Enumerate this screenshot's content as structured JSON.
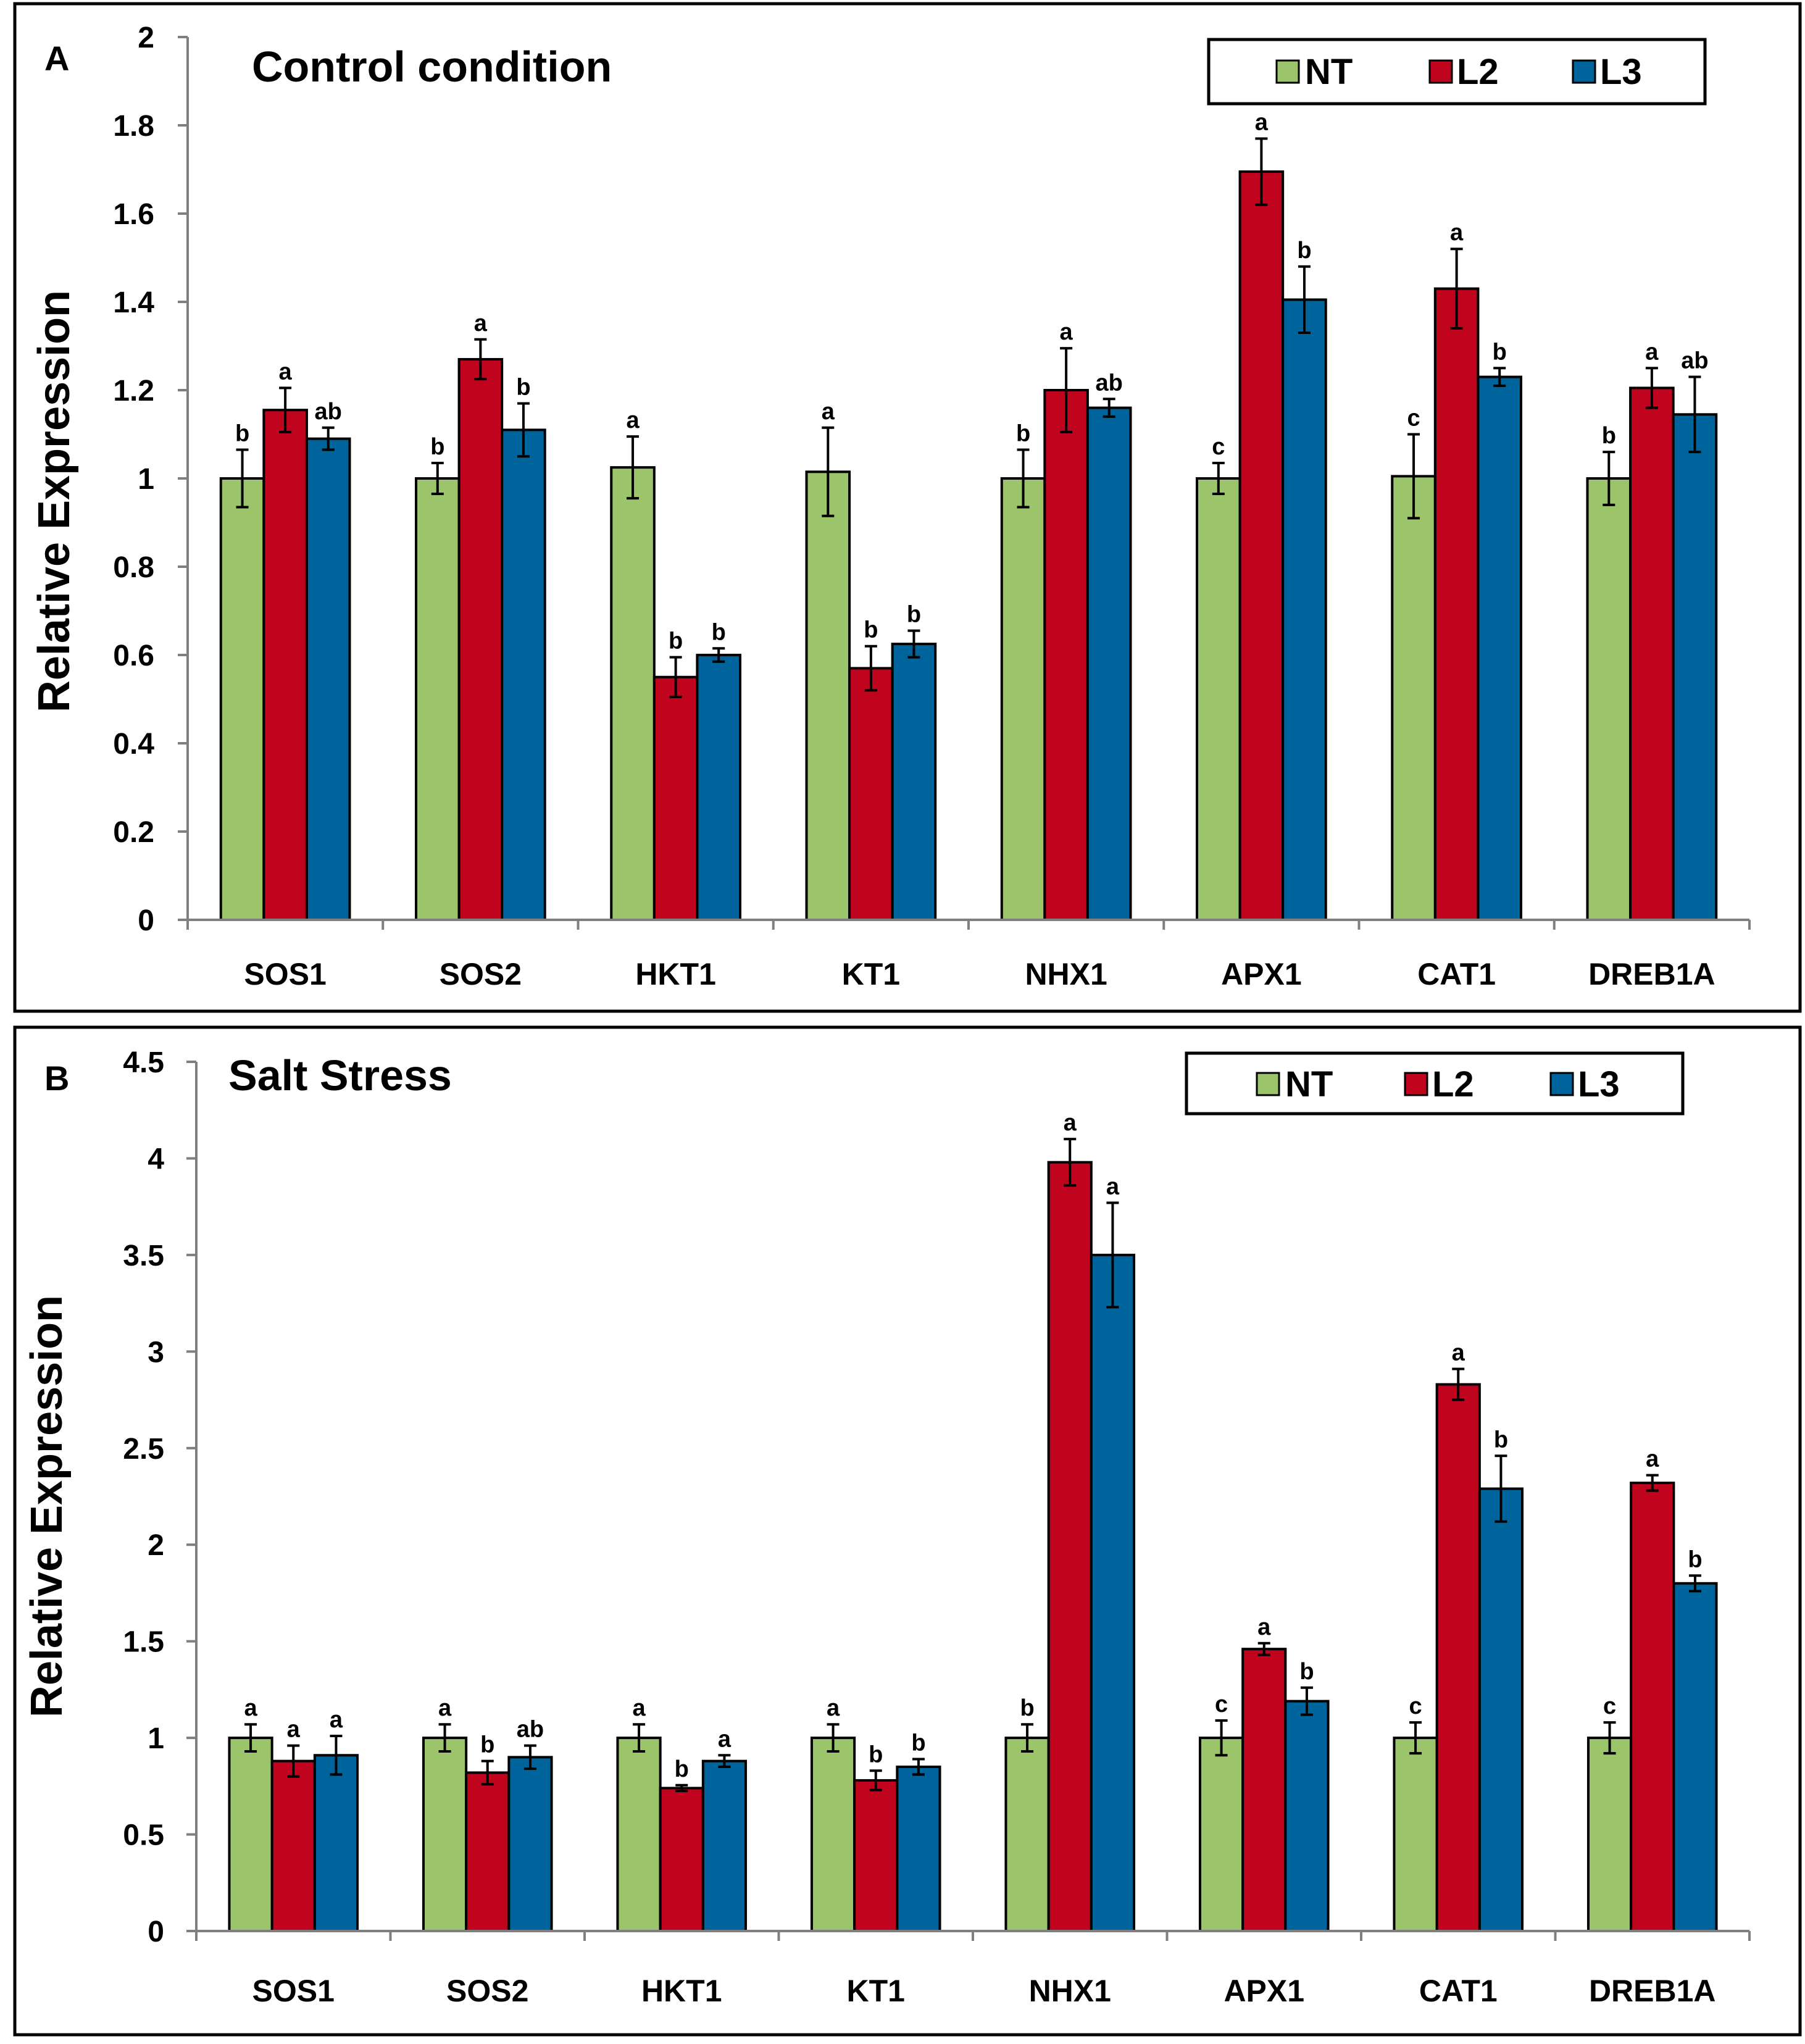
{
  "colors": {
    "NT": "#9bc46b",
    "L2": "#c0041e",
    "L3": "#00649c"
  },
  "chart_data": [
    {
      "type": "bar",
      "panel_label": "A",
      "title": "Control condition",
      "xlabel": "",
      "ylabel": "Relative Expression",
      "ylim": [
        0,
        2
      ],
      "yticks": [
        0,
        0.2,
        0.4,
        0.6,
        0.8,
        1,
        1.2,
        1.4,
        1.6,
        1.8,
        2
      ],
      "ytick_labels": [
        "0",
        "0.2",
        "0.4",
        "0.6",
        "0.8",
        "1",
        "1.2",
        "1.4",
        "1.6",
        "1.8",
        "2"
      ],
      "grid": false,
      "legend_position": "top-right",
      "categories": [
        "SOS1",
        "SOS2",
        "HKT1",
        "KT1",
        "NHX1",
        "APX1",
        "CAT1",
        "DREB1A"
      ],
      "series": [
        {
          "name": "NT",
          "values": [
            1.0,
            1.0,
            1.025,
            1.015,
            1.0,
            1.0,
            1.005,
            1.0
          ],
          "errors": [
            0.065,
            0.035,
            0.07,
            0.1,
            0.065,
            0.035,
            0.095,
            0.06
          ],
          "labels": [
            "b",
            "b",
            "a",
            "a",
            "b",
            "c",
            "c",
            "b"
          ]
        },
        {
          "name": "L2",
          "values": [
            1.155,
            1.27,
            0.55,
            0.57,
            1.2,
            1.695,
            1.43,
            1.205
          ],
          "errors": [
            0.05,
            0.045,
            0.045,
            0.05,
            0.095,
            0.075,
            0.09,
            0.045
          ],
          "labels": [
            "a",
            "a",
            "b",
            "b",
            "a",
            "a",
            "a",
            "a"
          ]
        },
        {
          "name": "L3",
          "values": [
            1.09,
            1.11,
            0.6,
            0.625,
            1.16,
            1.405,
            1.23,
            1.145
          ],
          "errors": [
            0.025,
            0.06,
            0.015,
            0.03,
            0.02,
            0.075,
            0.02,
            0.085
          ],
          "labels": [
            "ab",
            "b",
            "b",
            "b",
            "ab",
            "b",
            "b",
            "ab"
          ]
        }
      ]
    },
    {
      "type": "bar",
      "panel_label": "B",
      "title": "Salt Stress",
      "xlabel": "",
      "ylabel": "Relative Expression",
      "ylim": [
        0,
        4.5
      ],
      "yticks": [
        0,
        0.5,
        1,
        1.5,
        2,
        2.5,
        3,
        3.5,
        4,
        4.5
      ],
      "ytick_labels": [
        "0",
        "0.5",
        "1",
        "1.5",
        "2",
        "2.5",
        "3",
        "3.5",
        "4",
        "4.5"
      ],
      "grid": false,
      "legend_position": "top-right",
      "categories": [
        "SOS1",
        "SOS2",
        "HKT1",
        "KT1",
        "NHX1",
        "APX1",
        "CAT1",
        "DREB1A"
      ],
      "series": [
        {
          "name": "NT",
          "values": [
            1.0,
            1.0,
            1.0,
            1.0,
            1.0,
            1.0,
            1.0,
            1.0
          ],
          "errors": [
            0.07,
            0.07,
            0.07,
            0.07,
            0.07,
            0.09,
            0.08,
            0.08
          ],
          "labels": [
            "a",
            "a",
            "a",
            "a",
            "b",
            "c",
            "c",
            "c"
          ]
        },
        {
          "name": "L2",
          "values": [
            0.88,
            0.82,
            0.74,
            0.78,
            3.98,
            1.46,
            2.83,
            2.32
          ],
          "errors": [
            0.08,
            0.06,
            0.015,
            0.05,
            0.12,
            0.03,
            0.08,
            0.04
          ],
          "labels": [
            "a",
            "b",
            "b",
            "b",
            "a",
            "a",
            "a",
            "a"
          ]
        },
        {
          "name": "L3",
          "values": [
            0.91,
            0.9,
            0.88,
            0.85,
            3.5,
            1.19,
            2.29,
            1.8
          ],
          "errors": [
            0.1,
            0.06,
            0.03,
            0.04,
            0.27,
            0.07,
            0.17,
            0.04
          ],
          "labels": [
            "a",
            "ab",
            "a",
            "b",
            "a",
            "b",
            "b",
            "b"
          ]
        }
      ]
    }
  ]
}
